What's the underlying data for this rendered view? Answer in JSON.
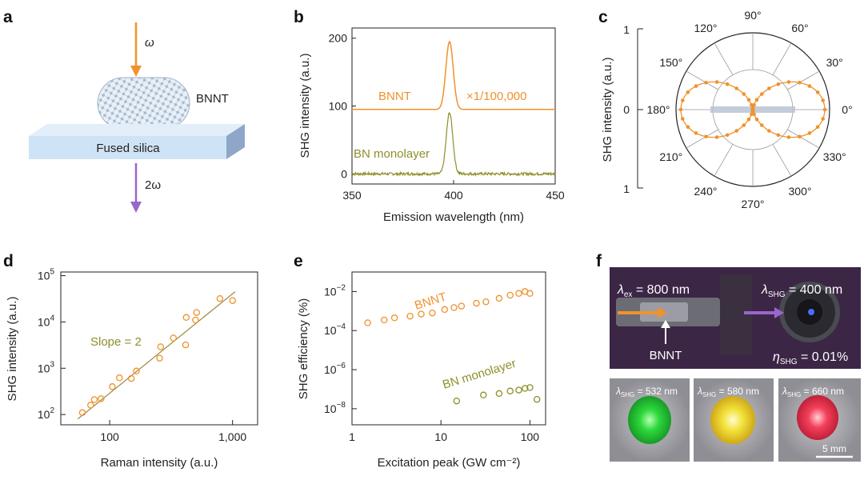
{
  "panel_labels": {
    "a": "a",
    "b": "b",
    "c": "c",
    "d": "d",
    "e": "e",
    "f": "f"
  },
  "panel_a": {
    "omega": "ω",
    "two_omega": "2ω",
    "bnnt": "BNNT",
    "substrate": "Fused silica"
  },
  "colors": {
    "orange": "#f0922c",
    "olive": "#8f8f2a",
    "green_line": "#6f7a1e",
    "purple": "#9966cc",
    "substrate": "#cfe3f6"
  },
  "chart_data": [
    {
      "panel": "b",
      "type": "line",
      "xlabel": "Emission wavelength (nm)",
      "ylabel": "SHG intensity (a.u.)",
      "xlim": [
        350,
        450
      ],
      "ylim": [
        -15,
        215
      ],
      "xticks": [
        350,
        400,
        450
      ],
      "yticks": [
        0,
        100,
        200
      ],
      "series": [
        {
          "name": "BNNT",
          "label": "BNNT",
          "annotation": "×1/100,000",
          "offset": 95,
          "peak_x": 398,
          "peak_height": 100,
          "width": 1.8,
          "color": "#f0922c"
        },
        {
          "name": "BN monolayer",
          "label": "BN monolayer",
          "offset": 0,
          "peak_x": 398,
          "peak_height": 90,
          "width": 1.6,
          "noise": 4,
          "color": "#8f8f2a"
        }
      ]
    },
    {
      "panel": "c",
      "type": "polar",
      "ylabel": "SHG intensity (a.u.)",
      "scale_ticks": [
        "1",
        "0",
        "1"
      ],
      "angle_labels": [
        "0°",
        "30°",
        "60°",
        "90°",
        "120°",
        "150°",
        "180°",
        "210°",
        "240°",
        "270°",
        "300°",
        "330°"
      ],
      "angles_deg": [
        0,
        30,
        60,
        90,
        120,
        150,
        180,
        210,
        240,
        270,
        300,
        330
      ],
      "model": "cos^2",
      "point_step_deg": 7.5
    },
    {
      "panel": "d",
      "type": "scatter",
      "scale": "log-log",
      "xlabel": "Raman intensity (a.u.)",
      "ylabel": "SHG intensity (a.u.)",
      "xlim": [
        40,
        1600
      ],
      "ylim": [
        60,
        120000
      ],
      "xtick_values": [
        100,
        1000
      ],
      "xtick_labels": [
        "100",
        "1,000"
      ],
      "ytick_values": [
        100,
        1000,
        10000,
        100000
      ],
      "ytick_labels": [
        {
          "base": "10",
          "exp": "2"
        },
        {
          "base": "10",
          "exp": "3"
        },
        {
          "base": "10",
          "exp": "4"
        },
        {
          "base": "10",
          "exp": "5"
        }
      ],
      "annotation": "Slope = 2",
      "x": [
        60,
        70,
        75,
        85,
        105,
        120,
        150,
        165,
        255,
        260,
        330,
        415,
        420,
        500,
        510,
        790,
        1000
      ],
      "y": [
        110,
        160,
        210,
        220,
        400,
        620,
        600,
        870,
        1650,
        2900,
        4500,
        3200,
        12500,
        11000,
        16000,
        32000,
        29000
      ],
      "fit": {
        "x": [
          55,
          1050
        ],
        "y": [
          80,
          45000
        ]
      }
    },
    {
      "panel": "e",
      "type": "scatter",
      "scale": "log-log",
      "xlabel": "Excitation peak (GW cm⁻²)",
      "ylabel": "SHG efficiency (%)",
      "xlim": [
        1,
        150
      ],
      "ylim": [
        1.5e-09,
        0.1
      ],
      "xtick_values": [
        1,
        10,
        100
      ],
      "xtick_labels": [
        "1",
        "10",
        "100"
      ],
      "ytick_values": [
        1e-08,
        1e-06,
        0.0001,
        0.01
      ],
      "ytick_labels": [
        {
          "base": "10",
          "exp": "−8"
        },
        {
          "base": "10",
          "exp": "−6"
        },
        {
          "base": "10",
          "exp": "−4"
        },
        {
          "base": "10",
          "exp": "−2"
        }
      ],
      "series": [
        {
          "name": "BNNT",
          "label": "BNNT",
          "color": "#f0922c",
          "x": [
            1.5,
            2.3,
            3,
            4.5,
            6,
            8,
            11,
            14,
            17,
            25,
            32,
            45,
            60,
            75,
            88,
            100
          ],
          "y": [
            0.00025,
            0.00035,
            0.00045,
            0.00055,
            0.0007,
            0.0008,
            0.0012,
            0.0015,
            0.0018,
            0.0025,
            0.003,
            0.0045,
            0.0065,
            0.008,
            0.01,
            0.008
          ]
        },
        {
          "name": "BN monolayer",
          "label": "BN monolayer",
          "color": "#8f8f2a",
          "x": [
            15,
            30,
            45,
            60,
            75,
            88,
            100,
            120
          ],
          "y": [
            2.5e-08,
            5e-08,
            6e-08,
            8e-08,
            9e-08,
            1.1e-07,
            1.2e-07,
            3e-08
          ]
        }
      ]
    }
  ],
  "panel_f": {
    "lambda_ex": "800 nm",
    "ex_sub": "ex",
    "lambda_shg": "400 nm",
    "shg_sub": "SHG",
    "bnnt": "BNNT",
    "eta": "0.01%",
    "eta_sub": "SHG",
    "spots": [
      {
        "value": "532 nm",
        "color": "#2bd83a"
      },
      {
        "value": "580 nm",
        "color": "#f2e23a"
      },
      {
        "value": "660 nm",
        "color": "#f4405a"
      }
    ],
    "scale_bar": "5 mm"
  }
}
